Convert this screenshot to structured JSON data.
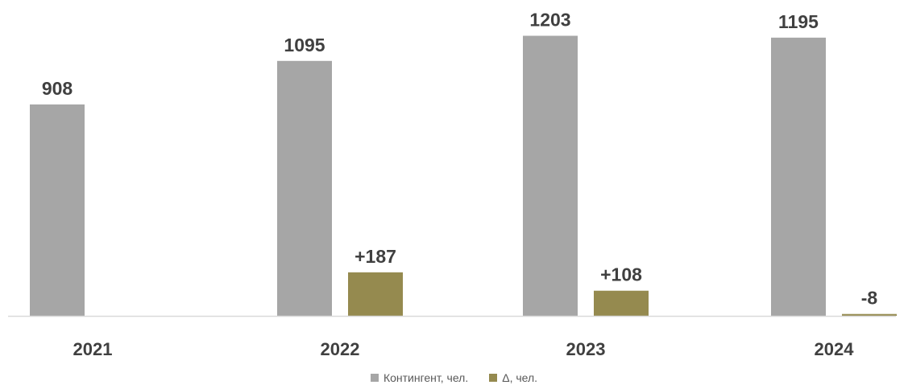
{
  "colors": {
    "contingent": "#a6a6a6",
    "delta": "#958a4f",
    "axis": "#d9d9d9",
    "text": "#404040",
    "legend_text": "#595959"
  },
  "chart_data": {
    "type": "bar",
    "title": "",
    "xlabel": "",
    "ylabel": "",
    "categories": [
      "2021",
      "2022",
      "2023",
      "2024"
    ],
    "series": [
      {
        "name": "Контингент, чел.",
        "values": [
          908,
          1095,
          1203,
          1195
        ],
        "labels": [
          "908",
          "1095",
          "1203",
          "1195"
        ]
      },
      {
        "name": "Δ, чел.",
        "values": [
          null,
          187,
          108,
          -8
        ],
        "labels": [
          "",
          "+187",
          "+108",
          "-8"
        ]
      }
    ],
    "ylim": [
      0,
      1260
    ],
    "grid": false,
    "legend": "bottom"
  }
}
